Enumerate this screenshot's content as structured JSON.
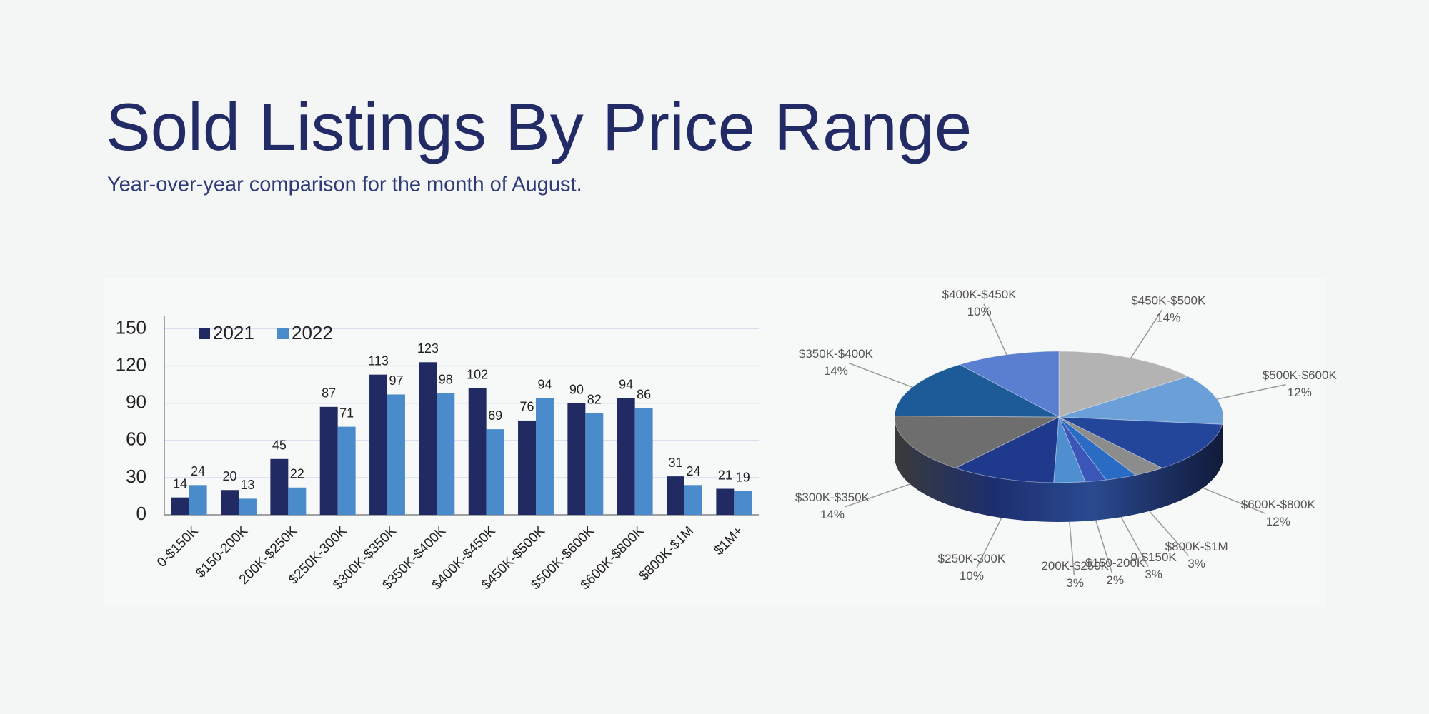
{
  "header": {
    "title": "Sold Listings By Price Range",
    "subtitle": "Year-over-year comparison for the month of August."
  },
  "chart_data": [
    {
      "type": "bar",
      "categories": [
        "0-$150K",
        "$150-200K",
        "200K-$250K",
        "$250K-300K",
        "$300K-$350K",
        "$350K-$400K",
        "$400K-$450K",
        "$450K-$500K",
        "$500K-$600K",
        "$600K-$800K",
        "$800K-$1M",
        "$1M+"
      ],
      "series": [
        {
          "name": "2021",
          "color": "#222a63",
          "values": [
            14,
            20,
            45,
            87,
            113,
            123,
            102,
            76,
            90,
            94,
            31,
            21
          ]
        },
        {
          "name": "2022",
          "color": "#4a8bcb",
          "values": [
            24,
            13,
            22,
            71,
            97,
            98,
            69,
            94,
            82,
            86,
            24,
            19
          ]
        }
      ],
      "ylim": [
        0,
        160
      ],
      "yticks": [
        0,
        30,
        60,
        90,
        120,
        150
      ],
      "grid": true
    },
    {
      "type": "pie",
      "categories": [
        "$450K-$500K",
        "$500K-$600K",
        "$600K-$800K",
        "$800K-$1M",
        "0-$150K",
        "$150-200K",
        "200K-$250K",
        "$250K-300K",
        "$300K-$350K",
        "$350K-$400K",
        "$400K-$450K"
      ],
      "values": [
        14,
        12,
        12,
        3,
        3,
        2,
        3,
        10,
        14,
        14,
        10
      ],
      "value_labels": [
        "14%",
        "12%",
        "12%",
        "3%",
        "3%",
        "2%",
        "3%",
        "10%",
        "14%",
        "14%",
        "10%"
      ],
      "colors": [
        "#b3b3b3",
        "#6a9fd8",
        "#23469a",
        "#8c8c8c",
        "#2a6cc4",
        "#3b55b8",
        "#4f8fd0",
        "#1f3a8c",
        "#6e6e6e",
        "#1d5a98",
        "#5a7fd0"
      ]
    }
  ]
}
